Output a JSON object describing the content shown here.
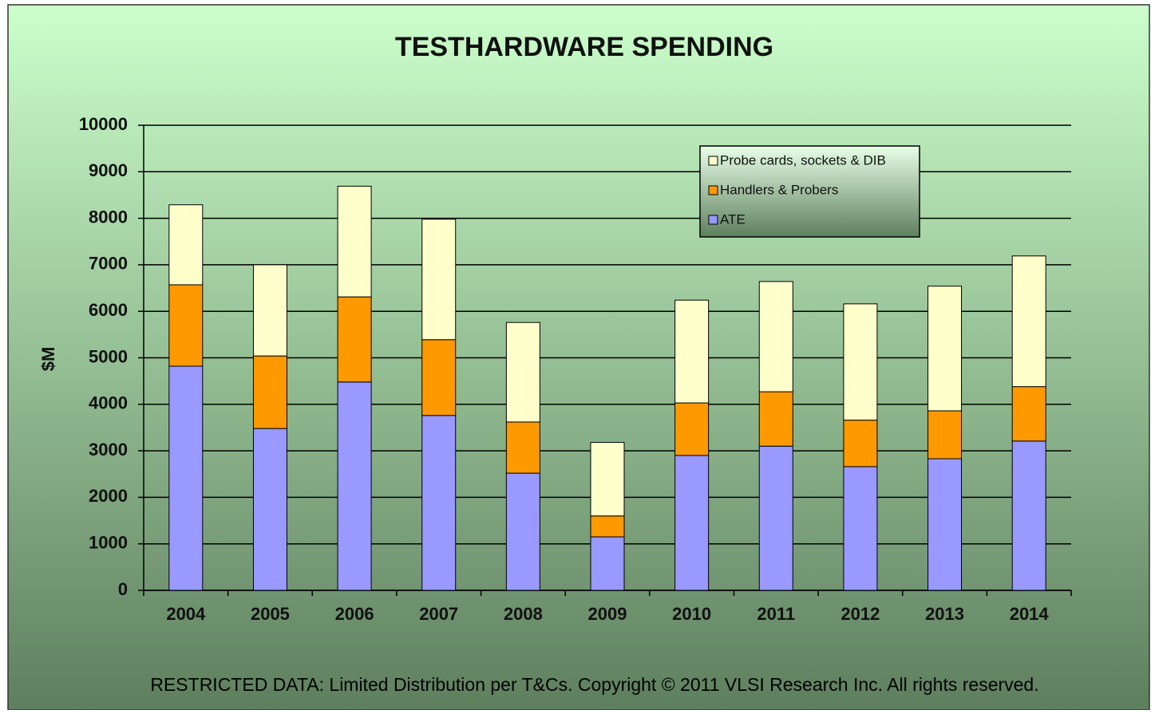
{
  "chart_data": {
    "type": "bar",
    "stacked": true,
    "title": "TESTHARDWARE SPENDING",
    "y_label": "$M",
    "footer": "RESTRICTED DATA: Limited Distribution per T&Cs.  Copyright © 2011 VLSI Research Inc.  All rights reserved.",
    "categories": [
      "2004",
      "2005",
      "2006",
      "2007",
      "2008",
      "2009",
      "2010",
      "2011",
      "2012",
      "2013",
      "2014"
    ],
    "series": [
      {
        "name": "ATE",
        "color": "#9999ff",
        "values": [
          4820,
          3480,
          4480,
          3760,
          2520,
          1150,
          2900,
          3100,
          2660,
          2830,
          3210
        ]
      },
      {
        "name": "Handlers & Probers",
        "color": "#ff9900",
        "values": [
          1750,
          1560,
          1830,
          1630,
          1100,
          450,
          1130,
          1170,
          1000,
          1030,
          1170
        ]
      },
      {
        "name": "Probe cards, sockets & DIB",
        "color": "#ffffcc",
        "values": [
          1720,
          1960,
          2380,
          2590,
          2140,
          1580,
          2210,
          2370,
          2500,
          2680,
          2810
        ]
      }
    ],
    "ylim": [
      0,
      10000
    ],
    "yticks": [
      0,
      1000,
      2000,
      3000,
      4000,
      5000,
      6000,
      7000,
      8000,
      9000,
      10000
    ],
    "grid": true,
    "legend": "top-right"
  }
}
